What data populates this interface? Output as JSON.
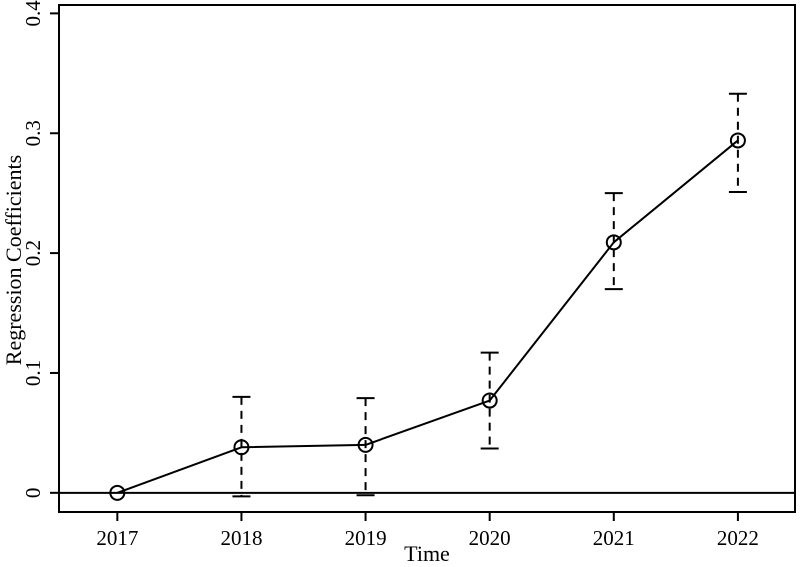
{
  "figure": {
    "background": "#ffffff",
    "ink_color": "#000000"
  },
  "chart_data": {
    "type": "line",
    "title": "",
    "xlabel": "Time",
    "ylabel": "Regression Coefficients",
    "x": [
      2017,
      2018,
      2019,
      2020,
      2021,
      2022
    ],
    "series": [
      {
        "name": "Regression Coefficients",
        "values": [
          0.0,
          0.038,
          0.04,
          0.077,
          0.209,
          0.294
        ],
        "ci_low": [
          null,
          -0.003,
          -0.002,
          0.037,
          0.17,
          0.251
        ],
        "ci_high": [
          null,
          0.08,
          0.079,
          0.117,
          0.25,
          0.333
        ]
      }
    ],
    "xticks": [
      "2017",
      "2018",
      "2019",
      "2020",
      "2021",
      "2022"
    ],
    "yticks": [
      0,
      0.1,
      0.2,
      0.3,
      0.4
    ],
    "ytick_labels": [
      "0",
      "0.1",
      "0.2",
      "0.3",
      "0.4"
    ],
    "xlim": [
      2016.53,
      2022.46
    ],
    "ylim": [
      -0.016,
      0.407
    ],
    "grid": false,
    "legend": "none",
    "zero_line_y": 0,
    "marker": "open-circle",
    "error_bar_style": "dashed",
    "line_color": "#000000",
    "marker_color": "#000000",
    "error_bar_color": "#000000"
  }
}
